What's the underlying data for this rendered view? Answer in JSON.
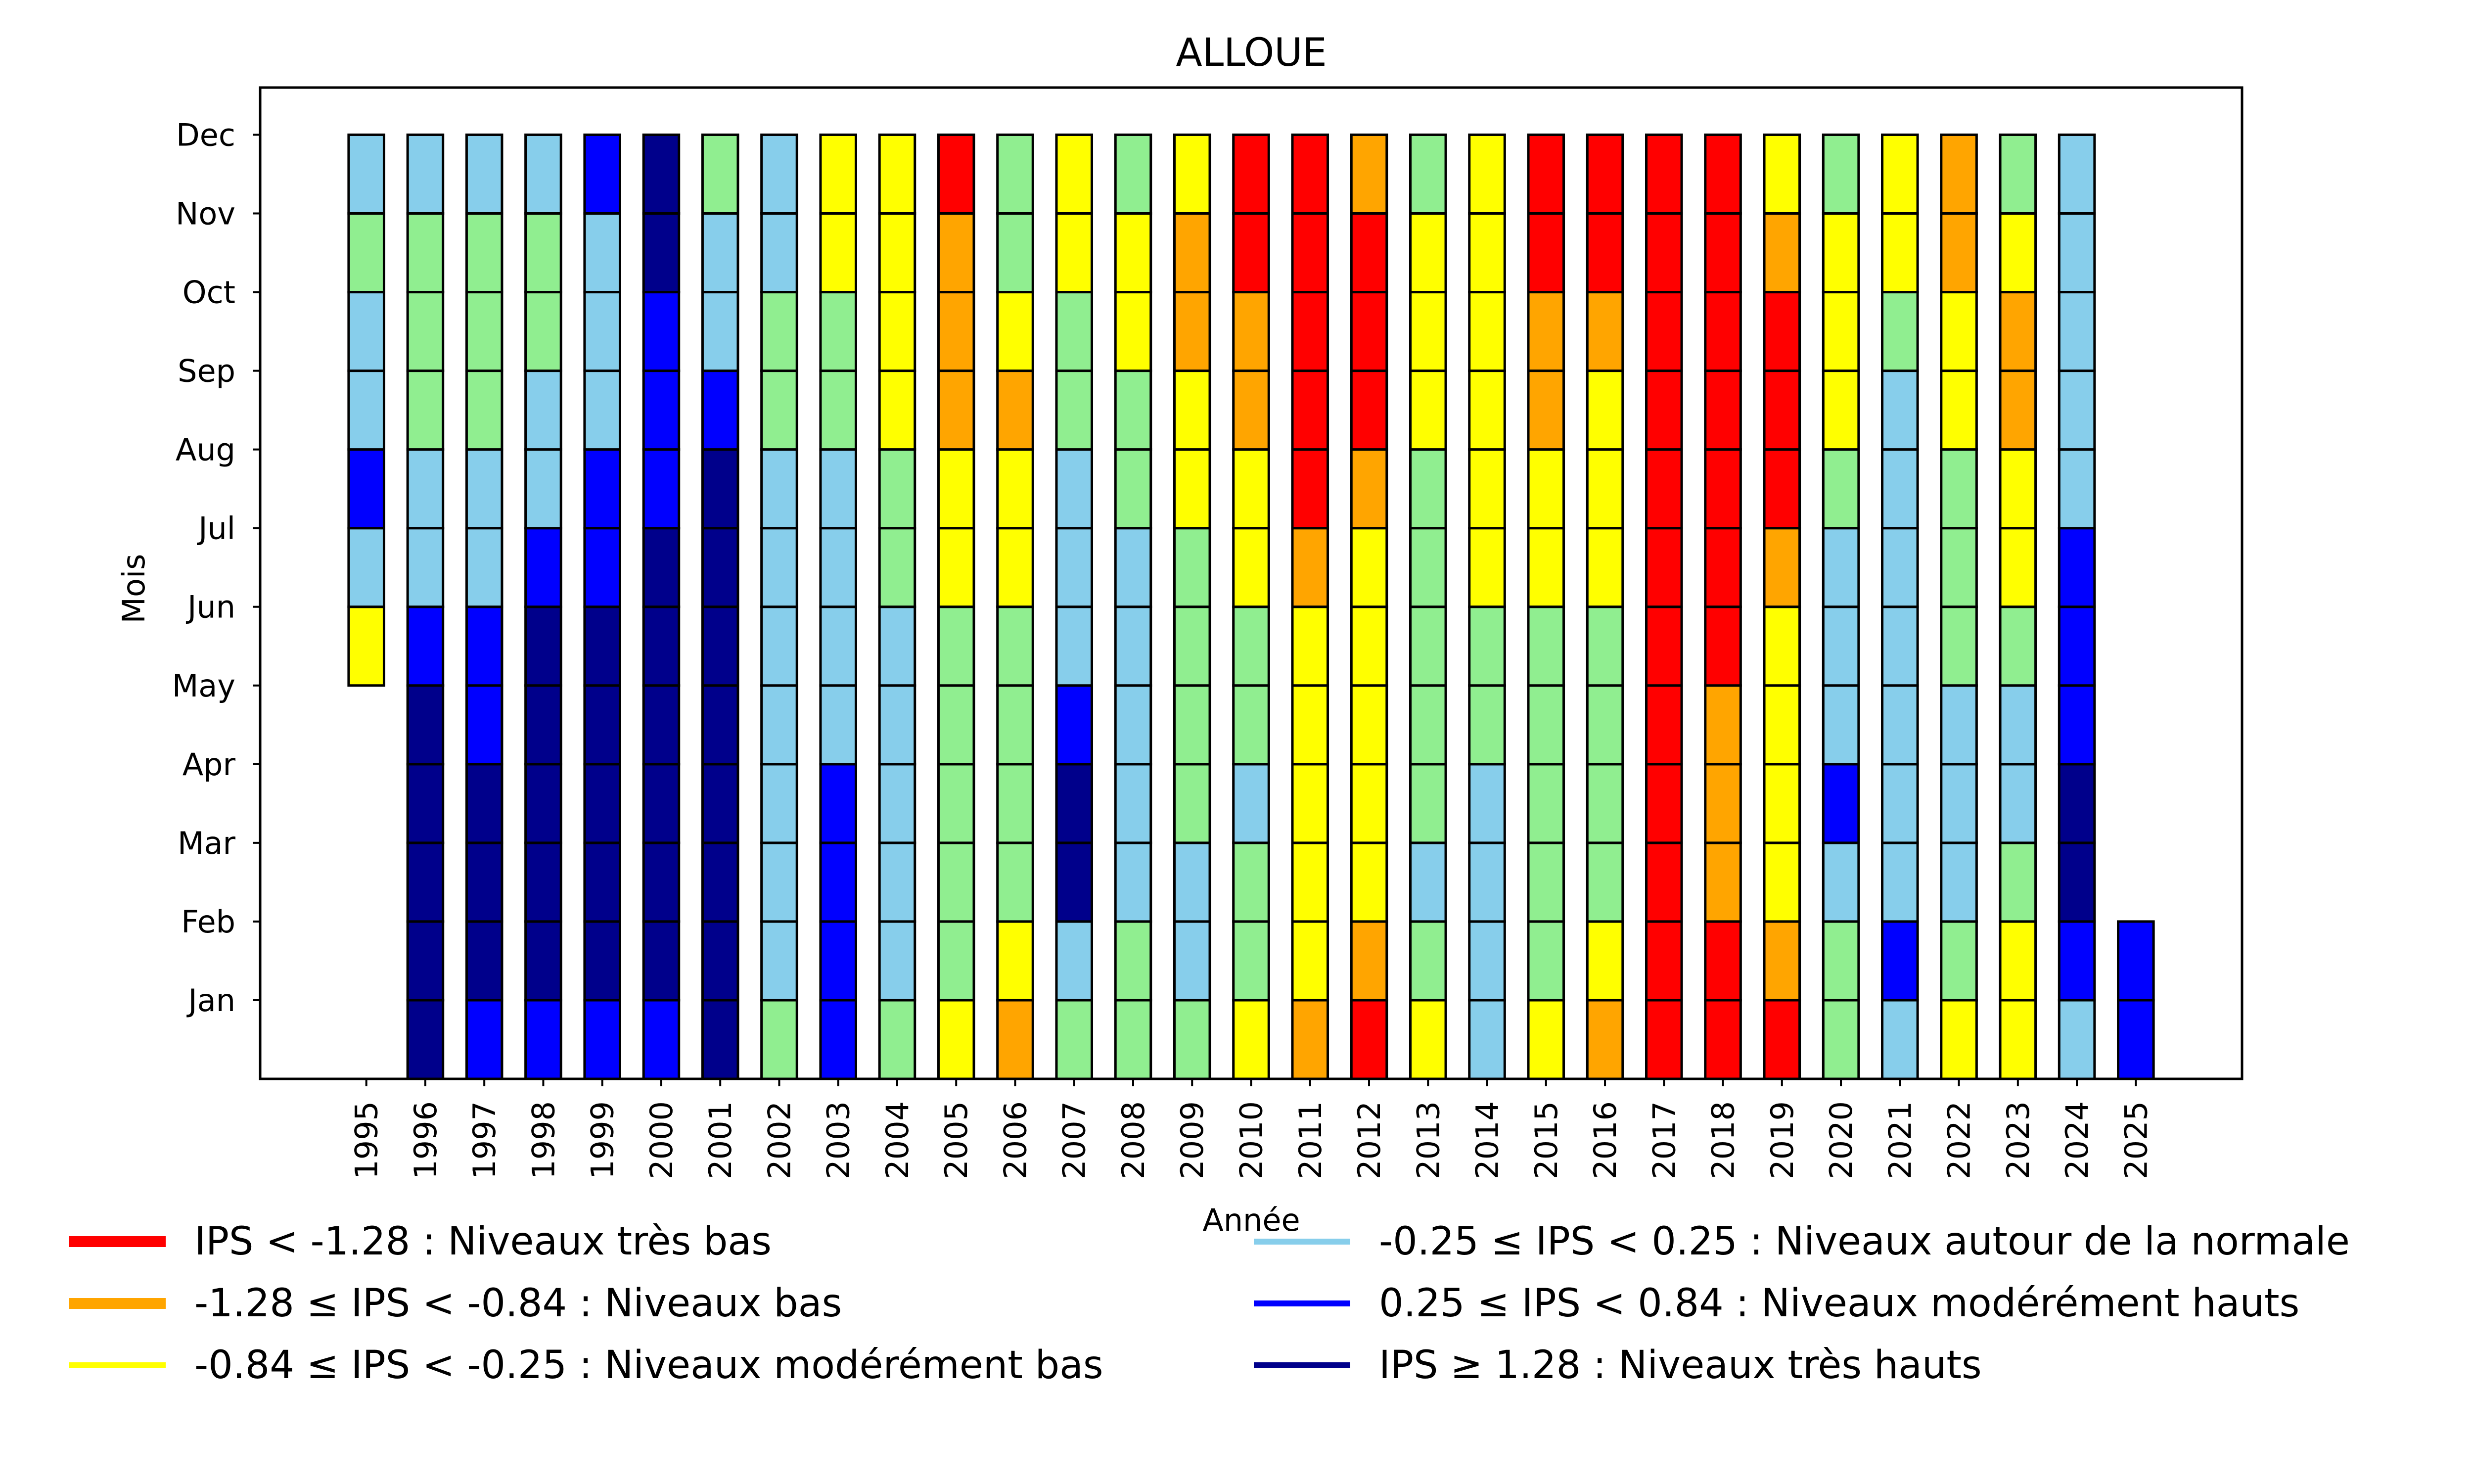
{
  "chart_data": {
    "type": "heatmap",
    "title": "ALLOUE",
    "xlabel": "Année",
    "ylabel": "Mois",
    "x": [
      1995,
      1996,
      1997,
      1998,
      1999,
      2000,
      2001,
      2002,
      2003,
      2004,
      2005,
      2006,
      2007,
      2008,
      2009,
      2010,
      2011,
      2012,
      2013,
      2014,
      2015,
      2016,
      2017,
      2018,
      2019,
      2020,
      2021,
      2022,
      2023,
      2024,
      2025
    ],
    "y_tick_labels": [
      "Jan",
      "Feb",
      "Mar",
      "Apr",
      "May",
      "Jun",
      "Jul",
      "Aug",
      "Sep",
      "Oct",
      "Nov",
      "Dec"
    ],
    "xlim": [
      1993.2,
      2026.8
    ],
    "ylim": [
      0,
      12.6
    ],
    "grid": false,
    "colors": {
      "red": "#ff0000",
      "orange": "#ffa500",
      "yellow": "#ffff00",
      "lightgreen": "#90ee90",
      "skyblue": "#87ceeb",
      "blue": "#0000ff",
      "navy": "#00008b"
    },
    "note": "cells listed Jan→Dec; null = no data",
    "cells": {
      "1995": [
        null,
        null,
        null,
        null,
        null,
        "yellow",
        "skyblue",
        "blue",
        "skyblue",
        "skyblue",
        "lightgreen",
        "skyblue"
      ],
      "1996": [
        "navy",
        "navy",
        "navy",
        "navy",
        "navy",
        "blue",
        "skyblue",
        "skyblue",
        "lightgreen",
        "lightgreen",
        "lightgreen",
        "skyblue"
      ],
      "1997": [
        "blue",
        "navy",
        "navy",
        "navy",
        "blue",
        "blue",
        "skyblue",
        "skyblue",
        "lightgreen",
        "lightgreen",
        "lightgreen",
        "skyblue"
      ],
      "1998": [
        "blue",
        "navy",
        "navy",
        "navy",
        "navy",
        "navy",
        "blue",
        "skyblue",
        "skyblue",
        "lightgreen",
        "lightgreen",
        "skyblue"
      ],
      "1999": [
        "blue",
        "navy",
        "navy",
        "navy",
        "navy",
        "navy",
        "blue",
        "blue",
        "skyblue",
        "skyblue",
        "skyblue",
        "blue"
      ],
      "2000": [
        "blue",
        "navy",
        "navy",
        "navy",
        "navy",
        "navy",
        "navy",
        "blue",
        "blue",
        "blue",
        "navy",
        "navy"
      ],
      "2001": [
        "navy",
        "navy",
        "navy",
        "navy",
        "navy",
        "navy",
        "navy",
        "navy",
        "blue",
        "skyblue",
        "skyblue",
        "lightgreen"
      ],
      "2002": [
        "lightgreen",
        "skyblue",
        "skyblue",
        "skyblue",
        "skyblue",
        "skyblue",
        "skyblue",
        "skyblue",
        "lightgreen",
        "lightgreen",
        "skyblue",
        "skyblue"
      ],
      "2003": [
        "blue",
        "blue",
        "blue",
        "blue",
        "skyblue",
        "skyblue",
        "skyblue",
        "skyblue",
        "lightgreen",
        "lightgreen",
        "yellow",
        "yellow"
      ],
      "2004": [
        "lightgreen",
        "skyblue",
        "skyblue",
        "skyblue",
        "skyblue",
        "skyblue",
        "lightgreen",
        "lightgreen",
        "yellow",
        "yellow",
        "yellow",
        "yellow"
      ],
      "2005": [
        "yellow",
        "lightgreen",
        "lightgreen",
        "lightgreen",
        "lightgreen",
        "lightgreen",
        "yellow",
        "yellow",
        "orange",
        "orange",
        "orange",
        "red"
      ],
      "2006": [
        "orange",
        "yellow",
        "lightgreen",
        "lightgreen",
        "lightgreen",
        "lightgreen",
        "yellow",
        "yellow",
        "orange",
        "yellow",
        "lightgreen",
        "lightgreen"
      ],
      "2007": [
        "lightgreen",
        "skyblue",
        "navy",
        "navy",
        "blue",
        "skyblue",
        "skyblue",
        "skyblue",
        "lightgreen",
        "lightgreen",
        "yellow",
        "yellow"
      ],
      "2008": [
        "lightgreen",
        "lightgreen",
        "skyblue",
        "skyblue",
        "skyblue",
        "skyblue",
        "skyblue",
        "lightgreen",
        "lightgreen",
        "yellow",
        "yellow",
        "lightgreen"
      ],
      "2009": [
        "lightgreen",
        "skyblue",
        "skyblue",
        "lightgreen",
        "lightgreen",
        "lightgreen",
        "lightgreen",
        "yellow",
        "yellow",
        "orange",
        "orange",
        "yellow"
      ],
      "2010": [
        "yellow",
        "lightgreen",
        "lightgreen",
        "skyblue",
        "lightgreen",
        "lightgreen",
        "yellow",
        "yellow",
        "orange",
        "orange",
        "red",
        "red"
      ],
      "2011": [
        "orange",
        "yellow",
        "yellow",
        "yellow",
        "yellow",
        "yellow",
        "orange",
        "red",
        "red",
        "red",
        "red",
        "red"
      ],
      "2012": [
        "red",
        "orange",
        "yellow",
        "yellow",
        "yellow",
        "yellow",
        "yellow",
        "orange",
        "red",
        "red",
        "red",
        "orange"
      ],
      "2013": [
        "yellow",
        "lightgreen",
        "skyblue",
        "lightgreen",
        "lightgreen",
        "lightgreen",
        "lightgreen",
        "lightgreen",
        "yellow",
        "yellow",
        "yellow",
        "lightgreen"
      ],
      "2014": [
        "skyblue",
        "skyblue",
        "skyblue",
        "skyblue",
        "lightgreen",
        "lightgreen",
        "yellow",
        "yellow",
        "yellow",
        "yellow",
        "yellow",
        "yellow"
      ],
      "2015": [
        "yellow",
        "lightgreen",
        "lightgreen",
        "lightgreen",
        "lightgreen",
        "lightgreen",
        "yellow",
        "yellow",
        "orange",
        "orange",
        "red",
        "red"
      ],
      "2016": [
        "orange",
        "yellow",
        "lightgreen",
        "lightgreen",
        "lightgreen",
        "lightgreen",
        "yellow",
        "yellow",
        "yellow",
        "orange",
        "red",
        "red"
      ],
      "2017": [
        "red",
        "red",
        "red",
        "red",
        "red",
        "red",
        "red",
        "red",
        "red",
        "red",
        "red",
        "red"
      ],
      "2018": [
        "red",
        "red",
        "orange",
        "orange",
        "orange",
        "red",
        "red",
        "red",
        "red",
        "red",
        "red",
        "red"
      ],
      "2019": [
        "red",
        "orange",
        "yellow",
        "yellow",
        "yellow",
        "yellow",
        "orange",
        "red",
        "red",
        "red",
        "orange",
        "yellow"
      ],
      "2020": [
        "lightgreen",
        "lightgreen",
        "skyblue",
        "blue",
        "skyblue",
        "skyblue",
        "skyblue",
        "lightgreen",
        "yellow",
        "yellow",
        "yellow",
        "lightgreen"
      ],
      "2021": [
        "skyblue",
        "blue",
        "skyblue",
        "skyblue",
        "skyblue",
        "skyblue",
        "skyblue",
        "skyblue",
        "skyblue",
        "lightgreen",
        "yellow",
        "yellow"
      ],
      "2022": [
        "yellow",
        "lightgreen",
        "skyblue",
        "skyblue",
        "skyblue",
        "lightgreen",
        "lightgreen",
        "lightgreen",
        "yellow",
        "yellow",
        "orange",
        "orange"
      ],
      "2023": [
        "yellow",
        "yellow",
        "lightgreen",
        "skyblue",
        "skyblue",
        "lightgreen",
        "yellow",
        "yellow",
        "orange",
        "orange",
        "yellow",
        "lightgreen"
      ],
      "2024": [
        "skyblue",
        "blue",
        "navy",
        "navy",
        "blue",
        "blue",
        "blue",
        "skyblue",
        "skyblue",
        "skyblue",
        "skyblue",
        "skyblue"
      ],
      "2025": [
        "blue",
        "blue",
        null,
        null,
        null,
        null,
        null,
        null,
        null,
        null,
        null,
        null
      ]
    },
    "legend": {
      "placement": "bottom",
      "entries": [
        {
          "label": "IPS < -1.28 : Niveaux très bas",
          "color": "#ff0000",
          "weight": "thick"
        },
        {
          "label": "-1.28 ≤ IPS < -0.84 : Niveaux bas",
          "color": "#ffa500",
          "weight": "thick"
        },
        {
          "label": "-0.84 ≤ IPS < -0.25 : Niveaux modérément bas",
          "color": "#ffff00",
          "weight": "thin"
        },
        {
          "label": "-0.25 ≤ IPS < 0.25 : Niveaux autour de la normale",
          "color": "#87ceeb",
          "weight": "thin"
        },
        {
          "label": "0.25 ≤ IPS < 0.84 : Niveaux modérément hauts",
          "color": "#0000ff",
          "weight": "thin"
        },
        {
          "label": "IPS ≥ 1.28 : Niveaux très hauts",
          "color": "#00008b",
          "weight": "thin"
        }
      ]
    }
  }
}
